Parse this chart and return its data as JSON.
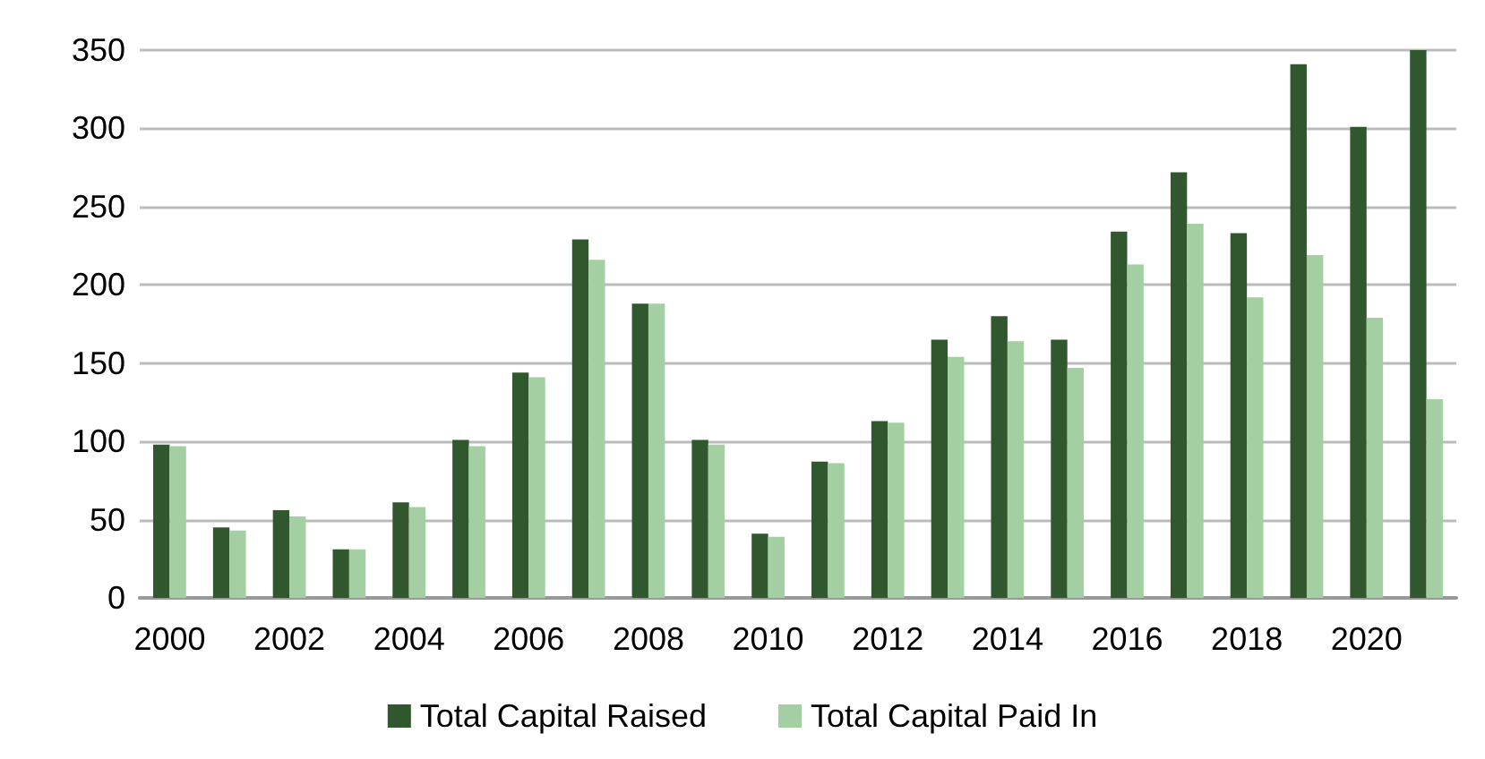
{
  "chart_data": {
    "type": "bar",
    "categories": [
      "2000",
      null,
      "2002",
      null,
      "2004",
      null,
      "2006",
      null,
      "2008",
      null,
      "2010",
      null,
      "2012",
      null,
      "2014",
      null,
      "2016",
      null,
      "2018",
      null,
      "2020",
      null
    ],
    "series": [
      {
        "name": "Total Capital Raised",
        "color": "#31572f",
        "values": [
          98,
          45,
          56,
          31,
          61,
          101,
          144,
          229,
          188,
          101,
          41,
          87,
          113,
          165,
          180,
          165,
          234,
          272,
          233,
          341,
          301,
          350
        ]
      },
      {
        "name": "Total Capital Paid In",
        "color": "#a3cfa3",
        "values": [
          97,
          43,
          52,
          31,
          58,
          97,
          141,
          216,
          188,
          98,
          39,
          86,
          112,
          154,
          164,
          147,
          213,
          239,
          192,
          219,
          179,
          127
        ]
      }
    ],
    "ylim": [
      0,
      350
    ],
    "yticks": [
      0,
      50,
      100,
      150,
      200,
      250,
      300,
      350
    ],
    "grid": "y",
    "legend": "bottom"
  }
}
